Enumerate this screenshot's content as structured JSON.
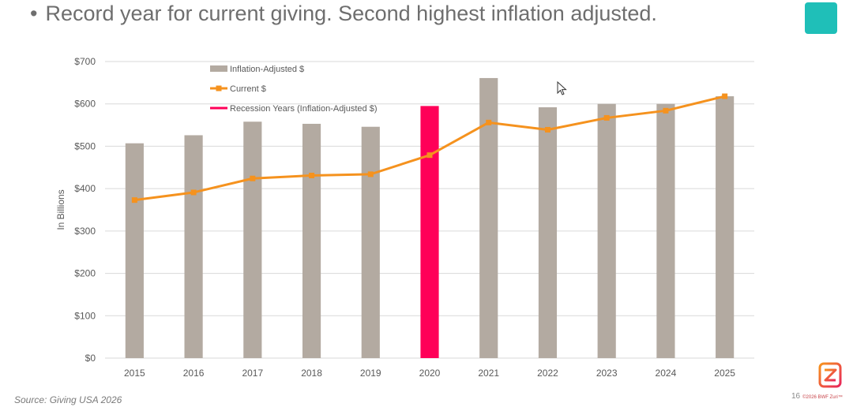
{
  "slide": {
    "bullet": "•",
    "title": "Record year for current giving. Second highest inflation adjusted.",
    "source": "Source: Giving USA 2026",
    "page_number": "16",
    "copyright": "©2026 BWF Zuri™",
    "accent_teal": "#1fbfb8"
  },
  "chart_data": {
    "type": "bar",
    "categories": [
      "2015",
      "2016",
      "2017",
      "2018",
      "2019",
      "2020",
      "2021",
      "2022",
      "2023",
      "2024",
      "2025"
    ],
    "series": [
      {
        "name": "Inflation-Adjusted $",
        "kind": "bar",
        "color": "#b3aaa1",
        "values": [
          507,
          526,
          558,
          553,
          546,
          595,
          661,
          592,
          600,
          600,
          618
        ]
      },
      {
        "name": "Current $",
        "kind": "line",
        "color": "#f5921e",
        "values": [
          373,
          391,
          424,
          431,
          434,
          479,
          556,
          539,
          567,
          584,
          618
        ]
      },
      {
        "name": "Recession Years (Inflation-Adjusted $)",
        "kind": "highlight",
        "color": "#ff0058",
        "categories": [
          "2020"
        ]
      }
    ],
    "ylabel": "In Billions",
    "ylim": [
      0,
      700
    ],
    "yticks": [
      "$0",
      "$100",
      "$200",
      "$300",
      "$400",
      "$500",
      "$600",
      "$700"
    ],
    "grid": true,
    "legend_position": "top-left"
  }
}
